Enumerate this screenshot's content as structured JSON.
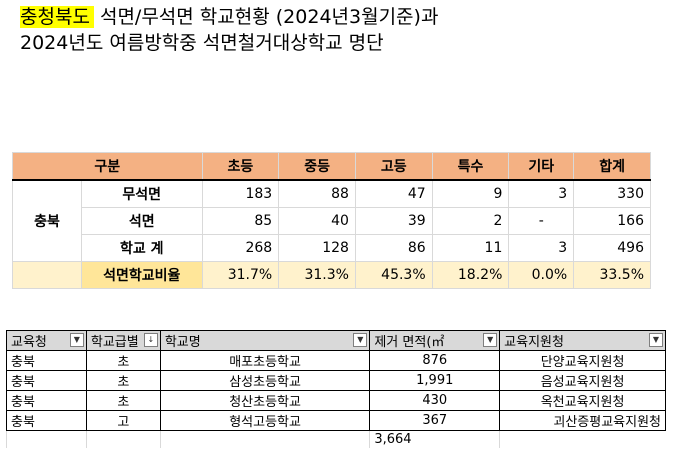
{
  "title": {
    "line1_highlight": "충청북도",
    "line1_rest": " 석면/무석면 학교현황 (2024년3월기준)과",
    "line2": "2024년도 여름방학중 석면철거대상학교 명단"
  },
  "summary": {
    "headers": [
      "구분",
      "초등",
      "중등",
      "고등",
      "특수",
      "기타",
      "합계"
    ],
    "region": "충북",
    "rows": [
      {
        "label": "무석면",
        "values": [
          "183",
          "88",
          "47",
          "9",
          "3",
          "330"
        ]
      },
      {
        "label": "석면",
        "values": [
          "85",
          "40",
          "39",
          "2",
          "-",
          "166"
        ]
      },
      {
        "label": "학교 계",
        "values": [
          "268",
          "128",
          "86",
          "11",
          "3",
          "496"
        ]
      },
      {
        "label": "석면학교비율",
        "values": [
          "31.7%",
          "31.3%",
          "45.3%",
          "18.2%",
          "0.0%",
          "33.5%"
        ]
      }
    ]
  },
  "list": {
    "headers": [
      "교육청",
      "학교급별",
      "학교명",
      "제거 면적(㎡",
      "교육지원청"
    ],
    "rows": [
      [
        "충북",
        "초",
        "매포초등학교",
        "876",
        "단양교육지원청"
      ],
      [
        "충북",
        "초",
        "삼성초등학교",
        "1,991",
        "음성교육지원청"
      ],
      [
        "충북",
        "초",
        "청산초등학교",
        "430",
        "옥천교육지원청"
      ],
      [
        "충북",
        "고",
        "형석고등학교",
        "367",
        "괴산증평교육지원청"
      ]
    ],
    "total": "3,664"
  },
  "colors": {
    "highlight": "#ffff00",
    "header_fill": "#f4b183",
    "ratio_fill": "#fff2cc",
    "list_header_fill": "#d9d9d9"
  }
}
